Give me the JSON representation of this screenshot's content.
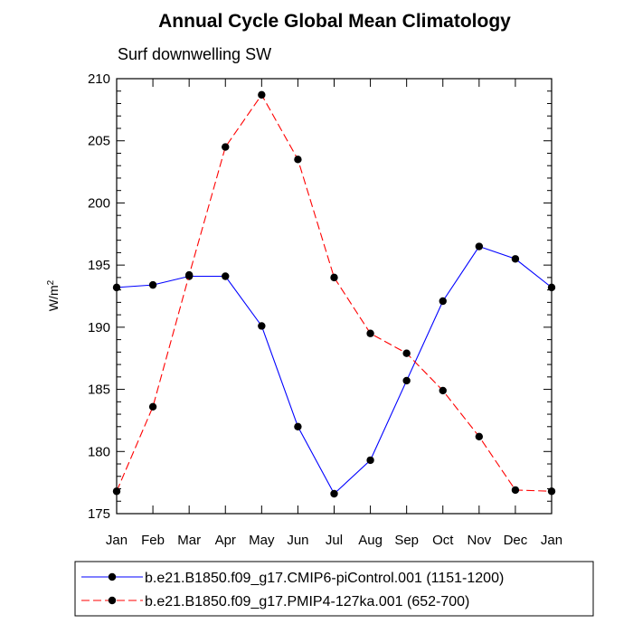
{
  "chart_data": {
    "type": "line",
    "title": "Annual Cycle Global Mean Climatology",
    "subtitle": "Surf downwelling SW",
    "xlabel": "",
    "ylabel_main": "W/m",
    "ylabel_sup": "2",
    "categories": [
      "Jan",
      "Feb",
      "Mar",
      "Apr",
      "May",
      "Jun",
      "Jul",
      "Aug",
      "Sep",
      "Oct",
      "Nov",
      "Dec",
      "Jan"
    ],
    "ylim": [
      175,
      210
    ],
    "yticks": [
      175,
      180,
      185,
      190,
      195,
      200,
      205,
      210
    ],
    "grid": false,
    "legend_position": "bottom",
    "series": [
      {
        "name": "b.e21.B1850.f09_g17.CMIP6-piControl.001 (1151-1200)",
        "color": "#0000ff",
        "line_style": "solid",
        "marker": "filled-circle",
        "values": [
          193.2,
          193.4,
          194.1,
          194.1,
          190.1,
          182.0,
          176.6,
          179.3,
          185.7,
          192.1,
          196.5,
          195.5,
          193.2
        ]
      },
      {
        "name": "b.e21.B1850.f09_g17.PMIP4-127ka.001 (652-700)",
        "color": "#ff0000",
        "line_style": "dashed",
        "marker": "filled-circle",
        "values": [
          176.8,
          183.6,
          194.2,
          204.5,
          208.7,
          203.5,
          194.0,
          189.5,
          187.9,
          184.9,
          181.2,
          176.9,
          176.8
        ]
      }
    ]
  }
}
